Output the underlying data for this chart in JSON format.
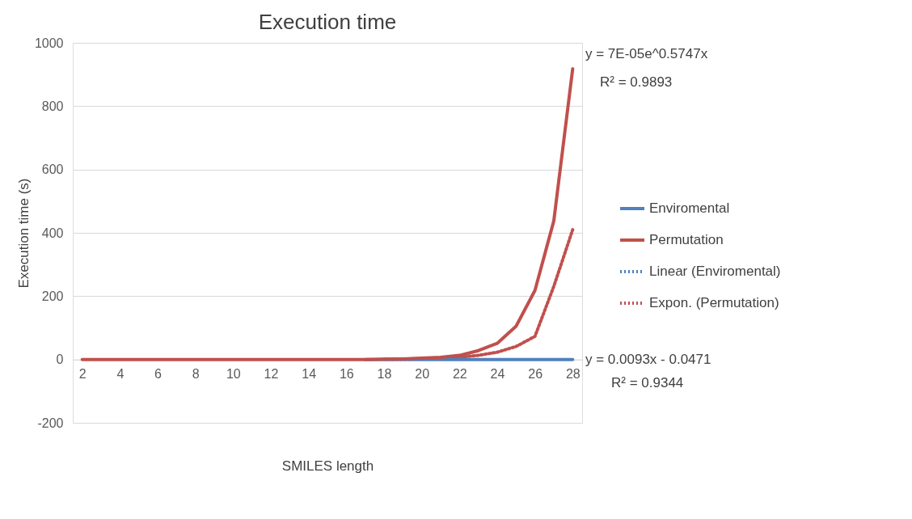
{
  "chart_data": {
    "type": "line",
    "title": "Execution time",
    "xlabel": "SMILES length",
    "ylabel": "Execution time (s)",
    "x": [
      2,
      3,
      4,
      5,
      6,
      7,
      8,
      9,
      10,
      11,
      12,
      13,
      14,
      15,
      16,
      17,
      18,
      19,
      20,
      21,
      22,
      23,
      24,
      25,
      26,
      27,
      28
    ],
    "series": [
      {
        "name": "Enviromental",
        "color": "#4f81bd",
        "line_style": "solid",
        "values": [
          null,
          null,
          null,
          null,
          null,
          null,
          null,
          null,
          null,
          null,
          null,
          null,
          null,
          null,
          null,
          0,
          0,
          0,
          0,
          0,
          0,
          0,
          0,
          0,
          0,
          0,
          0
        ]
      },
      {
        "name": "Permutation",
        "color": "#c0504d",
        "line_style": "solid",
        "values": [
          0,
          0,
          0,
          0,
          0,
          0,
          0,
          0,
          0,
          0,
          0,
          0,
          0,
          0,
          0,
          0,
          1,
          2,
          4,
          7,
          13,
          28,
          51,
          105,
          218,
          438,
          918
        ]
      },
      {
        "name": "Linear (Enviromental)",
        "color": "#4f81bd",
        "line_style": "dotted",
        "values": [
          null,
          null,
          null,
          null,
          null,
          null,
          null,
          null,
          null,
          null,
          null,
          null,
          null,
          null,
          null,
          null,
          null,
          null,
          null,
          null,
          null,
          null,
          null,
          null,
          null,
          null,
          null
        ]
      },
      {
        "name": "Expon. (Permutation)",
        "color": "#c0504d",
        "line_style": "dotted",
        "values": [
          null,
          null,
          null,
          null,
          null,
          null,
          null,
          null,
          null,
          null,
          null,
          null,
          null,
          null,
          null,
          null,
          1,
          1,
          2,
          4,
          7,
          13,
          23,
          41,
          73,
          231,
          410
        ]
      }
    ],
    "xlim": [
      1.5,
      28.5
    ],
    "xticks": [
      2,
      4,
      6,
      8,
      10,
      12,
      14,
      16,
      18,
      20,
      22,
      24,
      26,
      28
    ],
    "ylim": [
      -200,
      1000
    ],
    "yticks": [
      -200,
      0,
      200,
      400,
      600,
      800,
      1000
    ],
    "grid": "y",
    "legend": "right",
    "marker": "none",
    "annotations": [
      "y = 7E-05e^0.5747x",
      "R² = 0.9893",
      "y = 0.0093x - 0.0471",
      "R² = 0.9344"
    ]
  }
}
